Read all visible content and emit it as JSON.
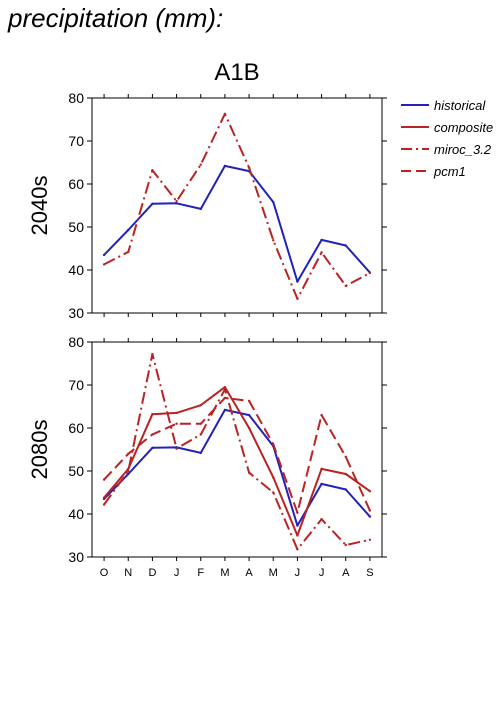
{
  "page_title": "precipitation (mm):",
  "chart_data": {
    "type": "line",
    "title": "A1B",
    "categories": [
      "O",
      "N",
      "D",
      "J",
      "F",
      "M",
      "A",
      "M",
      "J",
      "J",
      "A",
      "S"
    ],
    "ylim": [
      30,
      80
    ],
    "yticks": [
      30,
      40,
      50,
      60,
      70,
      80
    ],
    "legend_position": "right",
    "legend": [
      {
        "name": "historical",
        "color": "#2222bb",
        "dash": "solid"
      },
      {
        "name": "composite",
        "color": "#bb2222",
        "dash": "solid"
      },
      {
        "name": "miroc_3.2",
        "color": "#bb2222",
        "dash": "dashdot"
      },
      {
        "name": "pcm1",
        "color": "#bb2222",
        "dash": "dashed"
      }
    ],
    "panels": [
      {
        "ylabel": "2040s",
        "show_xticklabels": false,
        "series": [
          {
            "name": "historical",
            "color": "#2222bb",
            "dash": "solid",
            "values": [
              43.5,
              49.3,
              55.4,
              55.5,
              54.2,
              64.2,
              63.0,
              55.8,
              37.3,
              47.0,
              45.7,
              39.4
            ]
          },
          {
            "name": "miroc_3.2",
            "color": "#bb2222",
            "dash": "dashdot",
            "values": [
              41.3,
              44.2,
              63.2,
              56.0,
              64.5,
              76.3,
              63.8,
              46.9,
              33.3,
              44.1,
              36.3,
              39.3
            ]
          }
        ]
      },
      {
        "ylabel": "2080s",
        "show_xticklabels": true,
        "series": [
          {
            "name": "historical",
            "color": "#2222bb",
            "dash": "solid",
            "values": [
              43.5,
              49.3,
              55.4,
              55.5,
              54.2,
              64.2,
              63.0,
              55.8,
              37.3,
              47.0,
              45.7,
              39.4
            ]
          },
          {
            "name": "composite",
            "color": "#bb2222",
            "dash": "solid",
            "values": [
              43.8,
              50.5,
              63.2,
              63.5,
              65.3,
              69.5,
              60.0,
              48.5,
              35.0,
              50.5,
              49.3,
              45.3
            ]
          },
          {
            "name": "miroc_3.2",
            "color": "#bb2222",
            "dash": "dashdot",
            "values": [
              42.2,
              50.0,
              77.2,
              55.2,
              58.5,
              69.0,
              49.6,
              45.0,
              31.8,
              38.8,
              32.8,
              34.0
            ]
          },
          {
            "name": "pcm1",
            "color": "#bb2222",
            "dash": "dashed",
            "values": [
              48.0,
              54.0,
              58.5,
              61.0,
              61.0,
              67.0,
              66.3,
              56.2,
              40.3,
              63.0,
              53.3,
              40.8
            ]
          }
        ]
      }
    ]
  }
}
